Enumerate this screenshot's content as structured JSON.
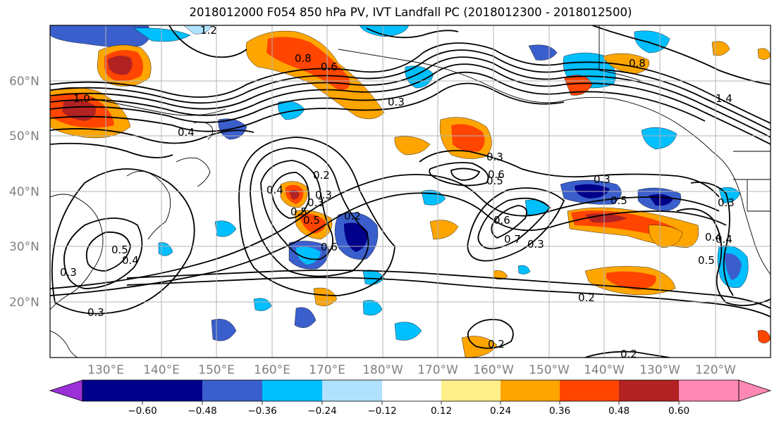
{
  "title": "2018012000 F054 850 hPa PV, IVT Landfall PC (2018012300 - 2018012500)",
  "lat_labels": [
    "60°N",
    "50°N",
    "40°N",
    "30°N",
    "20°N"
  ],
  "lon_labels": [
    "130°E",
    "140°E",
    "150°E",
    "160°E",
    "170°E",
    "180°W",
    "170°W",
    "160°W",
    "150°W",
    "140°W",
    "130°W",
    "120°W"
  ],
  "colorbar": {
    "tick_labels": [
      "−0.60",
      "−0.48",
      "−0.36",
      "−0.24",
      "−0.12",
      "0.12",
      "0.24",
      "0.36",
      "0.48",
      "0.60"
    ],
    "colors": [
      "#9b30d9",
      "#00008b",
      "#3a5fcd",
      "#00bfff",
      "#b0e2ff",
      "#ffffff",
      "#fff08a",
      "#ffa500",
      "#ff4500",
      "#b22222",
      "#ff88b4"
    ]
  },
  "contour_labels": [
    "1.0",
    "1.2",
    "0.8",
    "0.6",
    "0.3",
    "0.4",
    "0.2",
    "0.3",
    "0.4",
    "0.5",
    "0.6",
    "0.5",
    "0.2",
    "0.3",
    "0.5",
    "0.4",
    "0.3",
    "0.6",
    "0.7",
    "0.3",
    "0.3",
    "0.5",
    "0.3",
    "0.4",
    "0.5",
    "0.6",
    "0.8",
    "1.4",
    "0.2",
    "0.2",
    "0.2",
    "0.3",
    "0.5",
    "0.4",
    "0.3"
  ]
}
